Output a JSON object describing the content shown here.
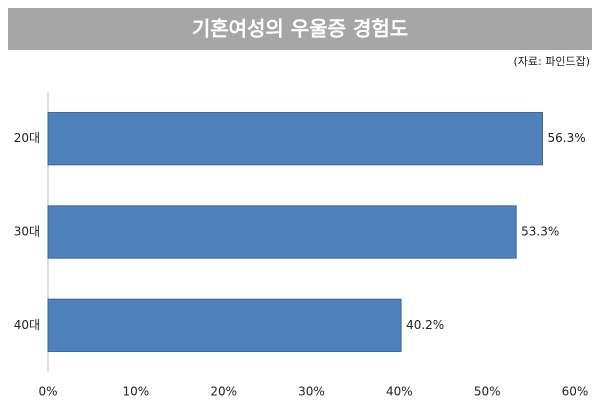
{
  "chart_data": {
    "type": "bar",
    "orientation": "horizontal",
    "title": "기혼여성의 우울증 경험도",
    "source": "(자료: 파인드잡)",
    "categories": [
      "20대",
      "30대",
      "40대"
    ],
    "values": [
      56.3,
      53.3,
      40.2
    ],
    "value_labels": [
      "56.3%",
      "53.3%",
      "40.2%"
    ],
    "color": "#4f81bd",
    "xlim": [
      0,
      60
    ],
    "xticks": [
      {
        "value": 0,
        "label": "0%"
      },
      {
        "value": 10,
        "label": "10%"
      },
      {
        "value": 20,
        "label": "20%"
      },
      {
        "value": 30,
        "label": "30%"
      },
      {
        "value": 40,
        "label": "40%"
      },
      {
        "value": 50,
        "label": "50%"
      },
      {
        "value": 60,
        "label": "60%"
      }
    ],
    "grid": false
  }
}
